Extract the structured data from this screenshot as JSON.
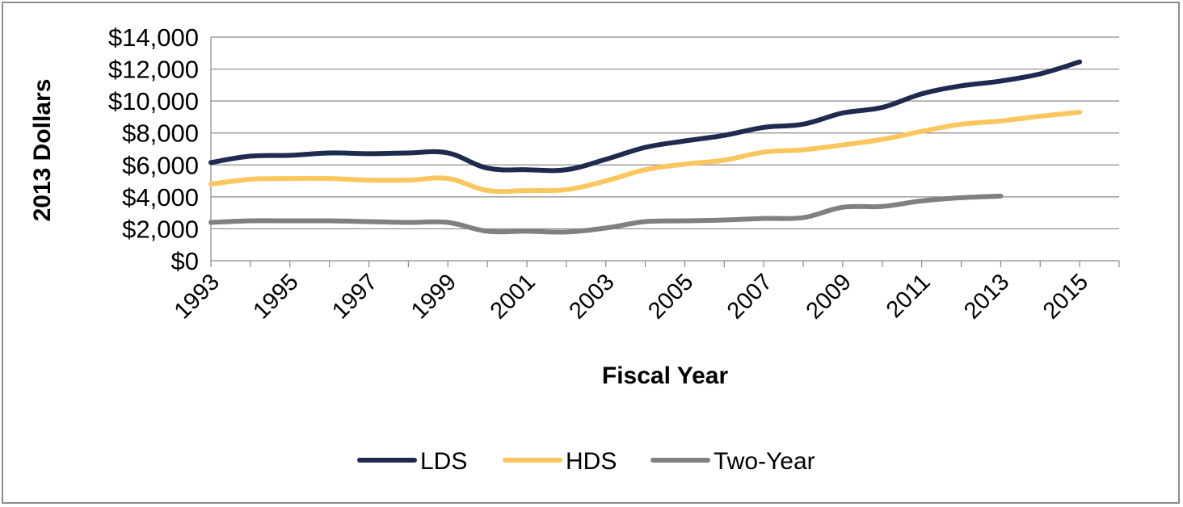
{
  "chart_data": {
    "type": "line",
    "title": "",
    "xlabel": "Fiscal Year",
    "ylabel": "2013 Dollars",
    "x": [
      1993,
      1994,
      1995,
      1996,
      1997,
      1998,
      1999,
      2000,
      2001,
      2002,
      2003,
      2004,
      2005,
      2006,
      2007,
      2008,
      2009,
      2010,
      2011,
      2012,
      2013,
      2014,
      2015
    ],
    "x_tick_labels": [
      "1993",
      "1995",
      "1997",
      "1999",
      "2001",
      "2003",
      "2005",
      "2007",
      "2009",
      "2011",
      "2013",
      "2015"
    ],
    "y_tick_labels": [
      "$0",
      "$2,000",
      "$4,000",
      "$6,000",
      "$8,000",
      "$10,000",
      "$12,000",
      "$14,000"
    ],
    "ylim": [
      0,
      14000
    ],
    "grid": true,
    "legend_position": "bottom",
    "series": [
      {
        "name": "LDS",
        "color": "#1f2a4f",
        "values": [
          6150,
          6550,
          6600,
          6750,
          6700,
          6750,
          6750,
          5800,
          5700,
          5700,
          6350,
          7100,
          7500,
          7850,
          8350,
          8550,
          9250,
          9600,
          10450,
          10950,
          11250,
          11700,
          12450
        ]
      },
      {
        "name": "HDS",
        "color": "#fcc65f",
        "values": [
          4800,
          5100,
          5150,
          5150,
          5050,
          5050,
          5150,
          4400,
          4400,
          4450,
          5000,
          5700,
          6050,
          6300,
          6800,
          6950,
          7250,
          7600,
          8100,
          8550,
          8750,
          9050,
          9300
        ]
      },
      {
        "name": "Two-Year",
        "color": "#808080",
        "values": [
          2400,
          2500,
          2500,
          2500,
          2450,
          2400,
          2400,
          1850,
          1850,
          1800,
          2050,
          2450,
          2500,
          2550,
          2650,
          2700,
          3350,
          3400,
          3750,
          3950,
          4050,
          null,
          null
        ]
      }
    ]
  }
}
